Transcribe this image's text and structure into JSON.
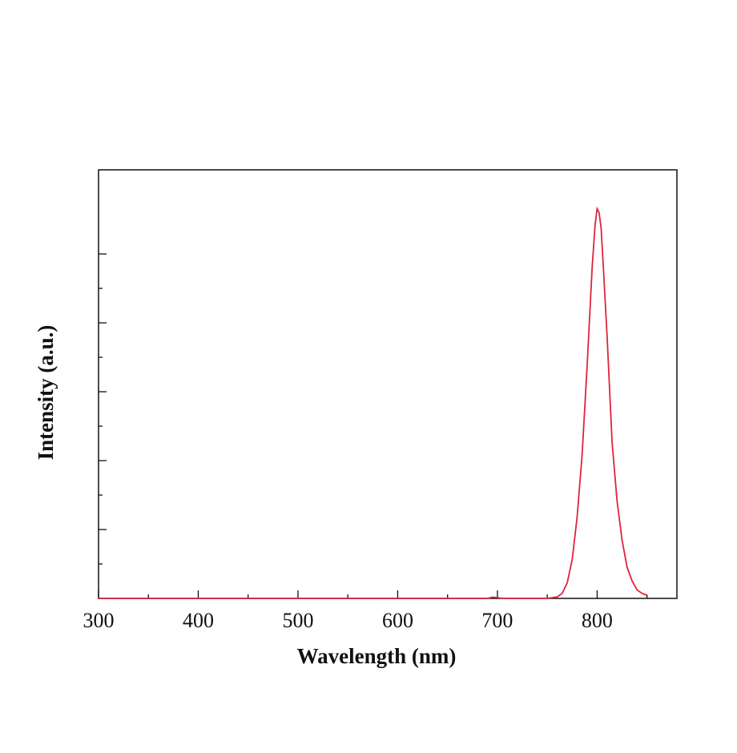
{
  "chart_data": {
    "type": "line",
    "title": "",
    "xlabel": "Wavelength (nm)",
    "ylabel": "Intensity (a.u.)",
    "xlim": [
      300,
      880
    ],
    "ylim": [
      0,
      1.1
    ],
    "x_ticks": [
      300,
      400,
      500,
      600,
      700,
      800
    ],
    "x_minor_tick_step": 50,
    "y_tick_labels_shown": false,
    "grid": false,
    "legend": "none",
    "series": [
      {
        "color": "#e0233a",
        "x": [
          300,
          400,
          500,
          600,
          690,
          695,
          700,
          705,
          750,
          760,
          765,
          770,
          775,
          780,
          785,
          790,
          795,
          798,
          800,
          802,
          804,
          806,
          810,
          815,
          820,
          825,
          830,
          835,
          840,
          845,
          850
        ],
        "y": [
          0.0,
          0.0,
          0.0,
          0.0,
          0.0,
          0.003,
          0.002,
          0.0,
          0.0,
          0.004,
          0.013,
          0.04,
          0.1,
          0.21,
          0.37,
          0.6,
          0.85,
          0.96,
          1.0,
          0.99,
          0.95,
          0.86,
          0.67,
          0.4,
          0.25,
          0.15,
          0.08,
          0.045,
          0.022,
          0.013,
          0.008
        ]
      }
    ]
  }
}
